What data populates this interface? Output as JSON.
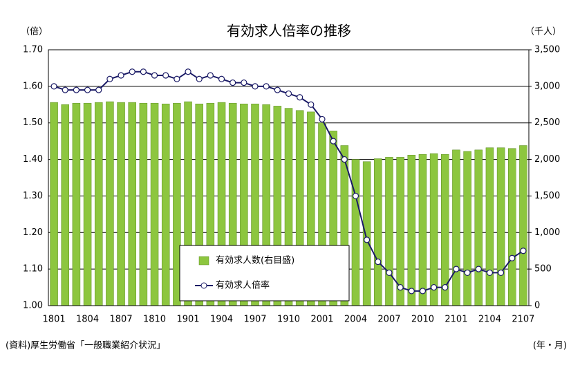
{
  "chart_data": {
    "type": "bar",
    "title": "有効求人倍率の推移",
    "y_label": "（倍）",
    "y2_label": "（千人）",
    "x_label": "(年・月)",
    "source": "(資料)厚生労働省「一般職業紹介状況」",
    "categories": [
      "1801",
      null,
      null,
      "1804",
      null,
      null,
      "1807",
      null,
      null,
      "1810",
      null,
      null,
      "1901",
      null,
      null,
      "1904",
      null,
      null,
      "1907",
      null,
      null,
      "1910",
      null,
      null,
      "2001",
      null,
      null,
      "2004",
      null,
      null,
      "2007",
      null,
      null,
      "2010",
      null,
      null,
      "2101",
      null,
      null,
      "2104",
      null,
      null,
      "2107"
    ],
    "series": [
      {
        "name": "有効求人数(右目盛)",
        "type": "bar",
        "axis": "y2",
        "color": "#8dc63f",
        "values": [
          2780,
          2750,
          2770,
          2770,
          2780,
          2790,
          2780,
          2780,
          2770,
          2770,
          2760,
          2770,
          2790,
          2760,
          2770,
          2780,
          2770,
          2760,
          2760,
          2750,
          2730,
          2700,
          2670,
          2650,
          2500,
          2390,
          2190,
          2000,
          1970,
          2010,
          2030,
          2030,
          2060,
          2070,
          2080,
          2070,
          2130,
          2110,
          2130,
          2160,
          2160,
          2150,
          2190
        ]
      },
      {
        "name": "有効求人倍率",
        "type": "line",
        "color": "#1a1a66",
        "values": [
          1.6,
          1.59,
          1.59,
          1.59,
          1.59,
          1.62,
          1.63,
          1.64,
          1.64,
          1.63,
          1.63,
          1.62,
          1.64,
          1.62,
          1.63,
          1.62,
          1.61,
          1.61,
          1.6,
          1.6,
          1.59,
          1.58,
          1.57,
          1.55,
          1.51,
          1.45,
          1.4,
          1.3,
          1.18,
          1.12,
          1.09,
          1.05,
          1.04,
          1.04,
          1.05,
          1.05,
          1.1,
          1.09,
          1.1,
          1.09,
          1.09,
          1.13,
          1.15
        ]
      }
    ],
    "ylim": [
      1.0,
      1.7
    ],
    "yticks": [
      {
        "value": 1.0,
        "label": "1.00"
      },
      {
        "value": 1.1,
        "label": "1.10"
      },
      {
        "value": 1.2,
        "label": "1.20"
      },
      {
        "value": 1.3,
        "label": "1.30"
      },
      {
        "value": 1.4,
        "label": "1.40"
      },
      {
        "value": 1.5,
        "label": "1.50"
      },
      {
        "value": 1.6,
        "label": "1.60"
      },
      {
        "value": 1.7,
        "label": "1.70"
      }
    ],
    "y2lim": [
      0,
      3500
    ],
    "y2ticks": [
      0,
      500,
      {
        "value": 1000,
        "label": "1,000"
      },
      {
        "value": 1500,
        "label": "1,500"
      },
      {
        "value": 2000,
        "label": "2,000"
      },
      {
        "value": 2500,
        "label": "2,500"
      },
      {
        "value": 3000,
        "label": "3,000"
      },
      {
        "value": 3500,
        "label": "3,500"
      }
    ],
    "grid": true
  }
}
